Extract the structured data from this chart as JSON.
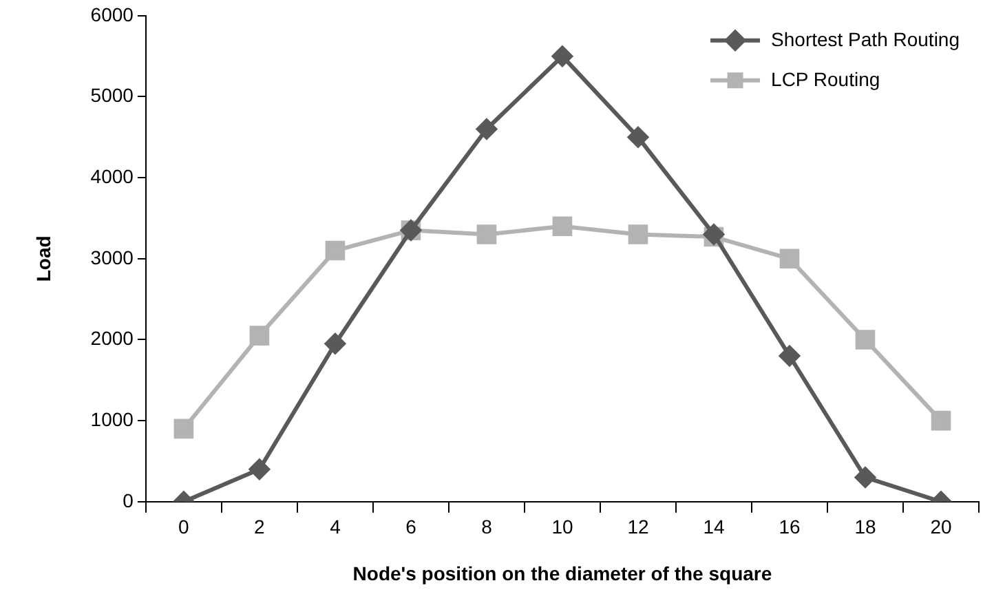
{
  "chart_data": {
    "type": "line",
    "xlabel": "Node's position on the diameter of the square",
    "ylabel": "Load",
    "categories": [
      "0",
      "2",
      "4",
      "6",
      "8",
      "10",
      "12",
      "14",
      "16",
      "18",
      "20"
    ],
    "ylim": [
      0,
      6000
    ],
    "yticks": [
      0,
      1000,
      2000,
      3000,
      4000,
      5000,
      6000
    ],
    "grid": false,
    "legend": "top right",
    "line_style": "solid",
    "series": [
      {
        "name": "Shortest Path Routing",
        "color": "#595959",
        "marker": "diamond",
        "values": [
          0,
          400,
          1950,
          3350,
          4600,
          5500,
          4500,
          3300,
          1800,
          300,
          0
        ]
      },
      {
        "name": "LCP Routing",
        "color": "#b3b3b3",
        "marker": "square",
        "values": [
          900,
          2050,
          3100,
          3350,
          3300,
          3400,
          3300,
          3270,
          3000,
          2000,
          1000
        ]
      }
    ]
  }
}
